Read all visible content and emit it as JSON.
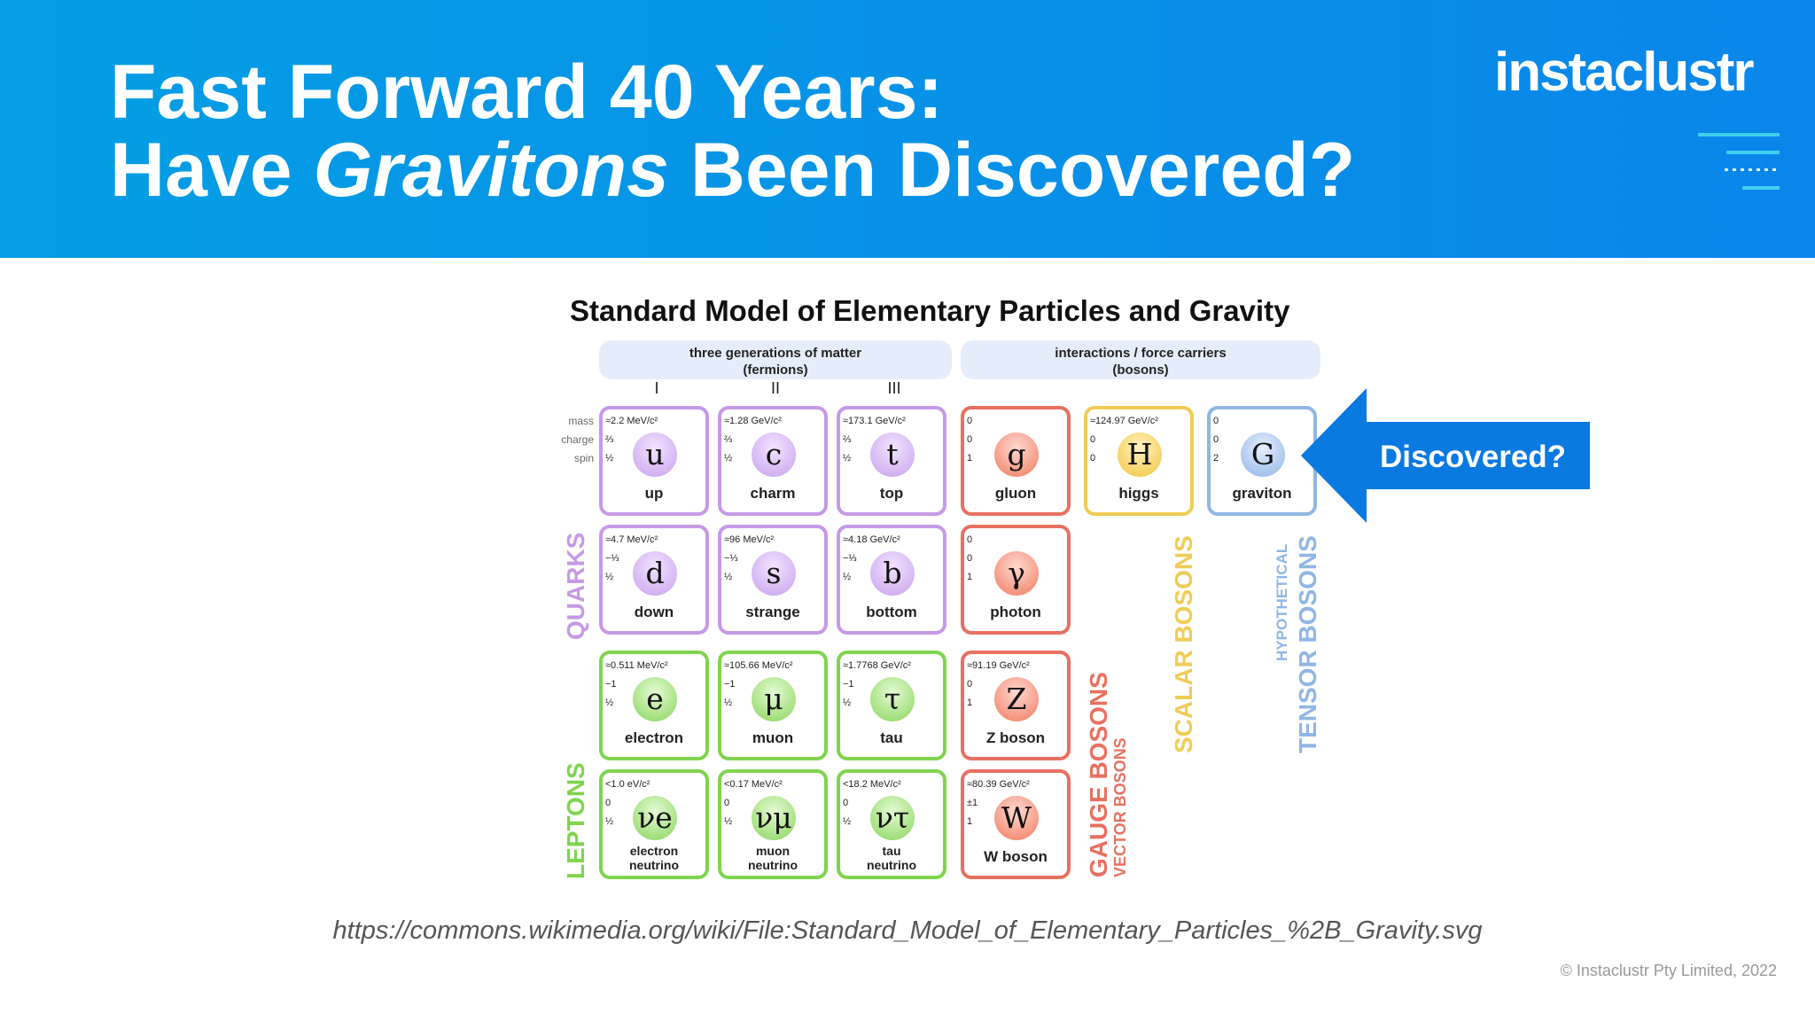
{
  "header": {
    "title_line1": "Fast Forward 40 Years:",
    "title_line2_pre": "Have ",
    "title_line2_em": "Gravitons",
    "title_line2_post": " Been Discovered?",
    "logo": "instaclustr",
    "icon": "menu-lines-icon"
  },
  "diagram": {
    "title": "Standard Model of Elementary Particles and Gravity",
    "fermions_label": "three generations of matter",
    "fermions_sub": "(fermions)",
    "bosons_label": "interactions / force carriers",
    "bosons_sub": "(bosons)",
    "generations": [
      "I",
      "II",
      "III"
    ],
    "row_labels": [
      "mass",
      "charge",
      "spin"
    ],
    "particles": [
      {
        "symbol": "u",
        "name": "up",
        "mass": "≈2.2 MeV/c²",
        "charge": "⅔",
        "spin": "½"
      },
      {
        "symbol": "c",
        "name": "charm",
        "mass": "≈1.28 GeV/c²",
        "charge": "⅔",
        "spin": "½"
      },
      {
        "symbol": "t",
        "name": "top",
        "mass": "≈173.1 GeV/c²",
        "charge": "⅔",
        "spin": "½"
      },
      {
        "symbol": "g",
        "name": "gluon",
        "mass": "0",
        "charge": "0",
        "spin": "1"
      },
      {
        "symbol": "H",
        "name": "higgs",
        "mass": "≈124.97 GeV/c²",
        "charge": "0",
        "spin": "0"
      },
      {
        "symbol": "G",
        "name": "graviton",
        "mass": "0",
        "charge": "0",
        "spin": "2"
      },
      {
        "symbol": "d",
        "name": "down",
        "mass": "≈4.7 MeV/c²",
        "charge": "−⅓",
        "spin": "½"
      },
      {
        "symbol": "s",
        "name": "strange",
        "mass": "≈96 MeV/c²",
        "charge": "−⅓",
        "spin": "½"
      },
      {
        "symbol": "b",
        "name": "bottom",
        "mass": "≈4.18 GeV/c²",
        "charge": "−⅓",
        "spin": "½"
      },
      {
        "symbol": "γ",
        "name": "photon",
        "mass": "0",
        "charge": "0",
        "spin": "1"
      },
      {
        "symbol": "e",
        "name": "electron",
        "mass": "≈0.511 MeV/c²",
        "charge": "−1",
        "spin": "½"
      },
      {
        "symbol": "μ",
        "name": "muon",
        "mass": "≈105.66 MeV/c²",
        "charge": "−1",
        "spin": "½"
      },
      {
        "symbol": "τ",
        "name": "tau",
        "mass": "≈1.7768 GeV/c²",
        "charge": "−1",
        "spin": "½"
      },
      {
        "symbol": "Z",
        "name": "Z boson",
        "mass": "≈91.19 GeV/c²",
        "charge": "0",
        "spin": "1"
      },
      {
        "symbol": "νe",
        "name_line1": "electron",
        "name_line2": "neutrino",
        "mass": "<1.0 eV/c²",
        "charge": "0",
        "spin": "½"
      },
      {
        "symbol": "νμ",
        "name_line1": "muon",
        "name_line2": "neutrino",
        "mass": "<0.17 MeV/c²",
        "charge": "0",
        "spin": "½"
      },
      {
        "symbol": "ντ",
        "name_line1": "tau",
        "name_line2": "neutrino",
        "mass": "<18.2 MeV/c²",
        "charge": "0",
        "spin": "½"
      },
      {
        "symbol": "W",
        "name": "W boson",
        "mass": "≈80.39 GeV/c²",
        "charge": "±1",
        "spin": "1"
      }
    ],
    "group_labels": {
      "quarks": "QUARKS",
      "leptons": "LEPTONS",
      "gauge": "GAUGE BOSONS",
      "vector": "VECTOR BOSONS",
      "scalar": "SCALAR BOSONS",
      "hypothetical": "HYPOTHETICAL",
      "tensor": "TENSOR BOSONS"
    },
    "colors": {
      "quark": "#c699e6",
      "lepton": "#7fd44e",
      "gauge": "#e87060",
      "scalar": "#f0cc55",
      "tensor": "#90b6e4"
    }
  },
  "callout": {
    "label": "Discovered?",
    "color": "#0a79e0"
  },
  "footer": {
    "url": "https://commons.wikimedia.org/wiki/File:Standard_Model_of_Elementary_Particles_%2B_Gravity.svg",
    "copyright": "© Instaclustr Pty Limited, 2022"
  }
}
